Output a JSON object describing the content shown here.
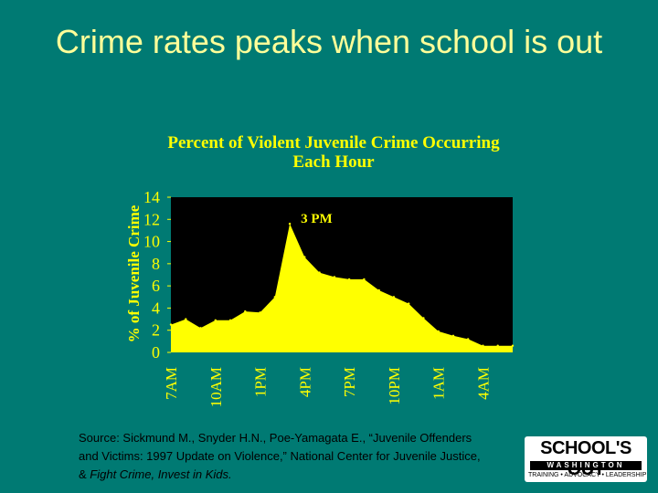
{
  "slide": {
    "title": "Crime rates peaks when school is out"
  },
  "chart_data": {
    "type": "area",
    "title": "Percent of Violent Juvenile Crime Occurring Each Hour",
    "ylabel": "% of Juvenile Crime",
    "xlabel": "",
    "ylim": [
      0,
      14
    ],
    "yticks": [
      0,
      2,
      4,
      6,
      8,
      10,
      12,
      14
    ],
    "x_tick_labels": [
      "7AM",
      "10AM",
      "1PM",
      "4PM",
      "7PM",
      "10PM",
      "1AM",
      "4AM"
    ],
    "x": [
      7,
      8,
      9,
      10,
      11,
      12,
      13,
      14,
      15,
      16,
      17,
      18,
      19,
      20,
      21,
      22,
      23,
      24,
      25,
      26,
      27,
      28,
      29,
      30
    ],
    "series": [
      {
        "values": [
          2.5,
          3.0,
          2.2,
          2.9,
          2.9,
          3.7,
          3.6,
          5.0,
          11.6,
          8.6,
          7.2,
          6.8,
          6.6,
          6.6,
          5.6,
          5.0,
          4.4,
          3.1,
          1.9,
          1.5,
          1.2,
          0.6,
          0.6,
          0.6
        ],
        "color": "#ffff00"
      }
    ],
    "annotations": [
      {
        "text": "3 PM",
        "x": 15,
        "y": 11.6
      }
    ],
    "plot_background": "#000000",
    "fill_color": "#ffff00",
    "text_color": "#ffff00",
    "grid": false
  },
  "source": {
    "line1": "Source: Sickmund M., Snyder H.N., Poe-Yamagata E., “Juvenile Offenders",
    "line2": "and Victims: 1997 Update on Violence,” National Center for Juvenile Justice,",
    "line3_prefix": "& ",
    "line3_italic": "Fight Crime, Invest in Kids."
  },
  "logo": {
    "name": "SCHOOL'S OUT",
    "state": "WASHINGTON",
    "tagline": "TRAINING • ADVOCACY • LEADERSHIP"
  }
}
